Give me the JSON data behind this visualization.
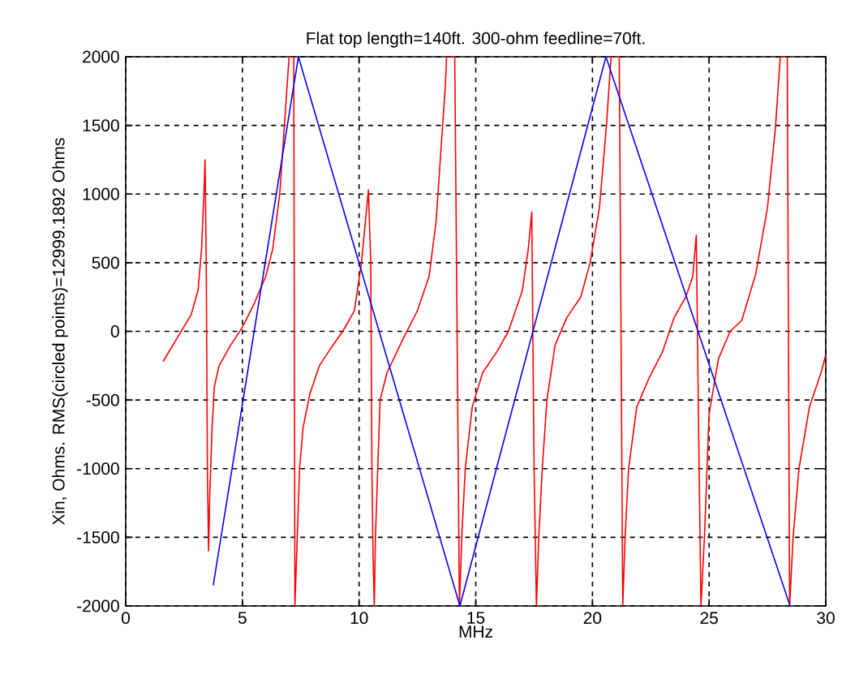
{
  "chart_data": {
    "type": "line",
    "title": "Flat top length=140ft.  300-ohm feedline=70ft.",
    "xlabel": "MHz",
    "ylabel": "Xin, Ohms.  RMS(circled points)=12999.1892 Ohms",
    "xlim": [
      0,
      30
    ],
    "ylim": [
      -2000,
      2000
    ],
    "xticks": [
      0,
      5,
      10,
      15,
      20,
      25,
      30
    ],
    "yticks": [
      -2000,
      -1500,
      -1000,
      -500,
      0,
      500,
      1000,
      1500,
      2000
    ],
    "grid": true,
    "marker": "none",
    "series": [
      {
        "color": "#ff0000",
        "x": [
          1.6,
          2.2,
          2.8,
          3.1,
          3.25,
          3.35,
          3.4,
          3.45,
          3.5,
          3.55,
          3.6,
          3.7,
          3.8,
          4.0,
          4.5,
          5.0,
          5.5,
          6.0,
          6.3,
          6.6,
          6.8,
          7.0,
          7.2,
          7.25,
          7.35,
          7.45,
          7.6,
          7.9,
          8.3,
          8.8,
          9.3,
          9.8,
          10.1,
          10.3,
          10.4,
          10.5,
          10.55,
          10.6,
          10.65,
          10.7,
          10.8,
          10.9,
          11.2,
          11.9,
          12.5,
          13.0,
          13.3,
          13.5,
          13.7,
          13.75,
          14.1,
          14.3,
          14.4,
          14.55,
          14.85,
          15.3,
          15.9,
          16.4,
          17.0,
          17.25,
          17.4,
          17.5,
          17.6,
          17.7,
          17.85,
          18.05,
          18.4,
          18.9,
          19.5,
          19.9,
          20.3,
          20.6,
          20.8,
          21.15,
          21.3,
          21.4,
          21.55,
          21.9,
          22.4,
          23.0,
          23.5,
          24.0,
          24.3,
          24.45,
          24.55,
          24.65,
          24.8,
          25.0,
          25.4,
          25.9,
          26.4,
          27.0,
          27.5,
          27.85,
          28.05,
          28.35,
          28.45,
          28.6,
          28.85,
          29.3,
          29.8,
          30.0
        ],
        "values": [
          -220,
          -50,
          120,
          300,
          600,
          1000,
          1250,
          500,
          -1000,
          -1600,
          -1200,
          -700,
          -400,
          -250,
          -100,
          30,
          200,
          400,
          600,
          1000,
          1500,
          2000,
          2000,
          -2000,
          -1500,
          -1000,
          -700,
          -450,
          -250,
          -120,
          0,
          150,
          500,
          850,
          1030,
          500,
          -1000,
          -1650,
          -2000,
          -1500,
          -1000,
          -500,
          -300,
          -50,
          150,
          400,
          800,
          1300,
          1800,
          2000,
          2000,
          -2000,
          -1500,
          -1000,
          -550,
          -300,
          -150,
          0,
          300,
          600,
          870,
          -1000,
          -2000,
          -1500,
          -1000,
          -500,
          -100,
          100,
          250,
          500,
          900,
          1500,
          2000,
          2000,
          -2000,
          -1500,
          -1000,
          -550,
          -350,
          -150,
          100,
          250,
          400,
          700,
          -700,
          -2000,
          -1500,
          -600,
          -200,
          0,
          80,
          420,
          900,
          1500,
          2000,
          2000,
          -2000,
          -1500,
          -1000,
          -550,
          -300,
          -170
        ]
      },
      {
        "color": "#0000ff",
        "x": [
          3.75,
          7.4,
          14.32,
          20.58,
          28.47
        ],
        "values": [
          -1850,
          2000,
          -2000,
          2000,
          -2000
        ]
      }
    ]
  }
}
